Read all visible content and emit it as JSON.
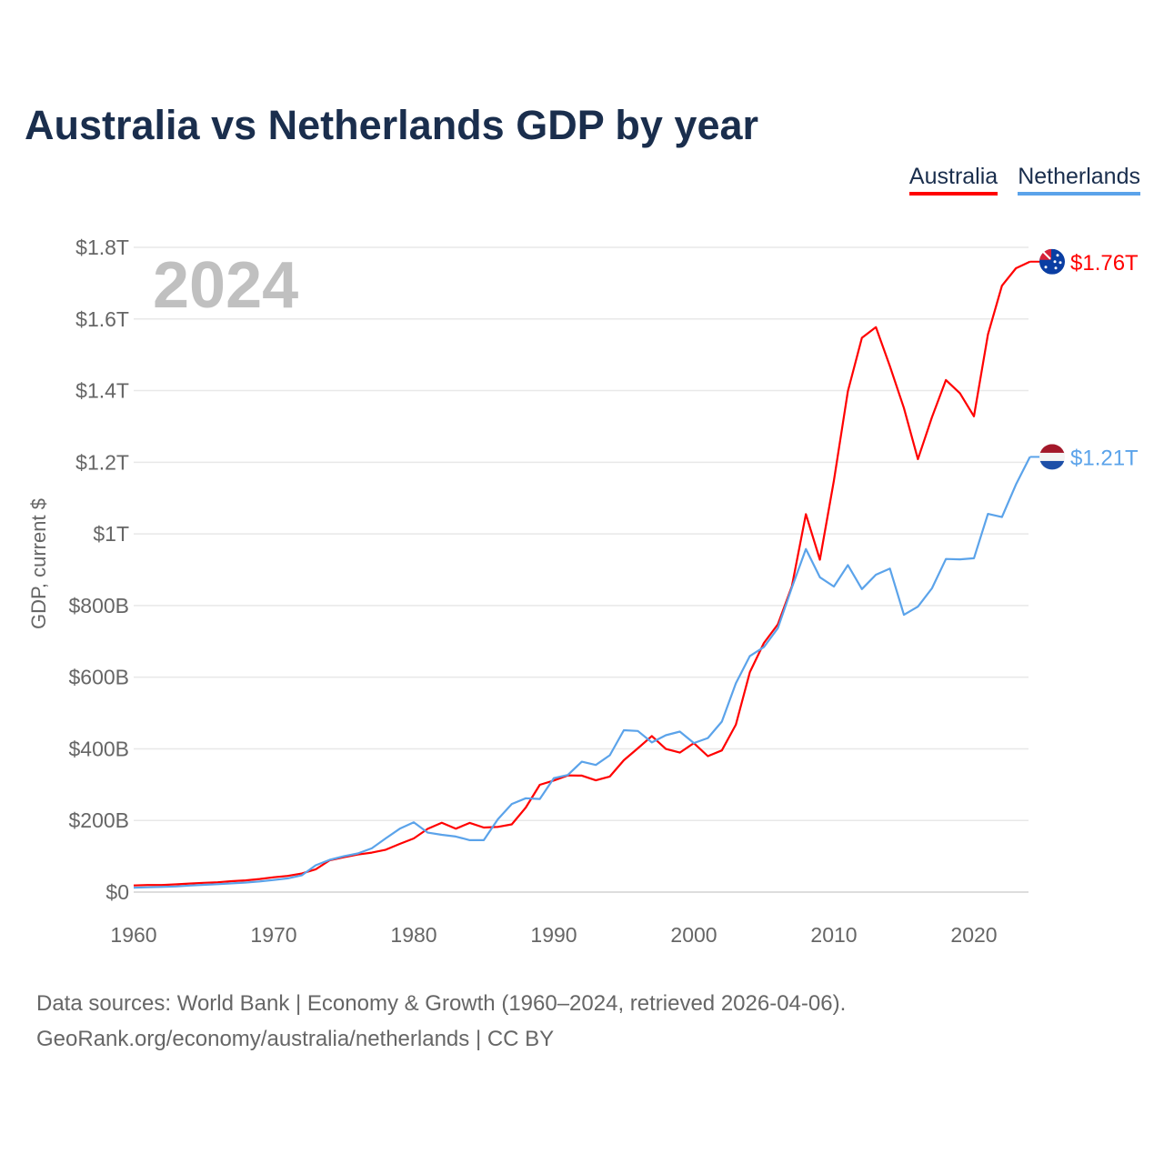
{
  "chart_data": {
    "type": "line",
    "title": "Australia vs Netherlands GDP by year",
    "ylabel": "GDP, current $",
    "xlabel": "",
    "year_label": "2024",
    "xlim": [
      1960,
      2024
    ],
    "ylim": [
      0,
      1.8
    ],
    "y_unit": "trillions USD",
    "grid": true,
    "legend_position": "top-right",
    "x_ticks": [
      1960,
      1970,
      1980,
      1990,
      2000,
      2010,
      2020
    ],
    "x_tick_labels": [
      "1960",
      "1970",
      "1980",
      "1990",
      "2000",
      "2010",
      "2020"
    ],
    "y_ticks": [
      0,
      0.2,
      0.4,
      0.6,
      0.8,
      1.0,
      1.2,
      1.4,
      1.6,
      1.8
    ],
    "y_tick_labels": [
      "$0",
      "$200B",
      "$400B",
      "$600B",
      "$800B",
      "$1T",
      "$1.2T",
      "$1.4T",
      "$1.6T",
      "$1.8T"
    ],
    "x": [
      1960,
      1961,
      1962,
      1963,
      1964,
      1965,
      1966,
      1967,
      1968,
      1969,
      1970,
      1971,
      1972,
      1973,
      1974,
      1975,
      1976,
      1977,
      1978,
      1979,
      1980,
      1981,
      1982,
      1983,
      1984,
      1985,
      1986,
      1987,
      1988,
      1989,
      1990,
      1991,
      1992,
      1993,
      1994,
      1995,
      1996,
      1997,
      1998,
      1999,
      2000,
      2001,
      2002,
      2003,
      2004,
      2005,
      2006,
      2007,
      2008,
      2009,
      2010,
      2011,
      2012,
      2013,
      2014,
      2015,
      2016,
      2017,
      2018,
      2019,
      2020,
      2021,
      2022,
      2023,
      2024
    ],
    "series": [
      {
        "name": "Australia",
        "color": "#ff0000",
        "end_label": "$1.76T",
        "values": [
          0.0186,
          0.0197,
          0.0199,
          0.0215,
          0.0238,
          0.0259,
          0.0273,
          0.0304,
          0.0327,
          0.0366,
          0.0413,
          0.0452,
          0.0519,
          0.0637,
          0.0888,
          0.0972,
          0.1049,
          0.1102,
          0.1183,
          0.1346,
          0.1498,
          0.1766,
          0.1938,
          0.177,
          0.1932,
          0.1802,
          0.182,
          0.1891,
          0.236,
          0.2996,
          0.3114,
          0.3256,
          0.3253,
          0.3121,
          0.3228,
          0.3682,
          0.4013,
          0.4356,
          0.3996,
          0.3894,
          0.4158,
          0.3796,
          0.3956,
          0.4675,
          0.6142,
          0.6953,
          0.7477,
          0.8538,
          1.0551,
          0.9278,
          1.1488,
          1.3987,
          1.5475,
          1.5771,
          1.4683,
          1.3513,
          1.2088,
          1.3256,
          1.4296,
          1.3927,
          1.3284,
          1.5567,
          1.6929,
          1.7417,
          1.76
        ]
      },
      {
        "name": "Netherlands",
        "color": "#5ba3ea",
        "end_label": "$1.21T",
        "values": [
          0.0123,
          0.0135,
          0.0145,
          0.0157,
          0.0184,
          0.0204,
          0.022,
          0.0243,
          0.0267,
          0.0298,
          0.0337,
          0.0384,
          0.0466,
          0.075,
          0.09,
          0.1,
          0.108,
          0.122,
          0.15,
          0.177,
          0.195,
          0.166,
          0.16,
          0.155,
          0.145,
          0.145,
          0.203,
          0.246,
          0.262,
          0.26,
          0.318,
          0.327,
          0.364,
          0.355,
          0.382,
          0.452,
          0.45,
          0.418,
          0.438,
          0.448,
          0.416,
          0.43,
          0.476,
          0.583,
          0.659,
          0.684,
          0.737,
          0.85,
          0.958,
          0.879,
          0.853,
          0.913,
          0.846,
          0.886,
          0.903,
          0.774,
          0.797,
          0.848,
          0.93,
          0.929,
          0.932,
          1.056,
          1.047,
          1.138,
          1.215
        ]
      }
    ]
  },
  "source": {
    "line1": "Data sources: World Bank | Economy & Growth (1960–2024, retrieved 2026-04-06).",
    "line2": "GeoRank.org/economy/australia/netherlands | CC BY"
  }
}
